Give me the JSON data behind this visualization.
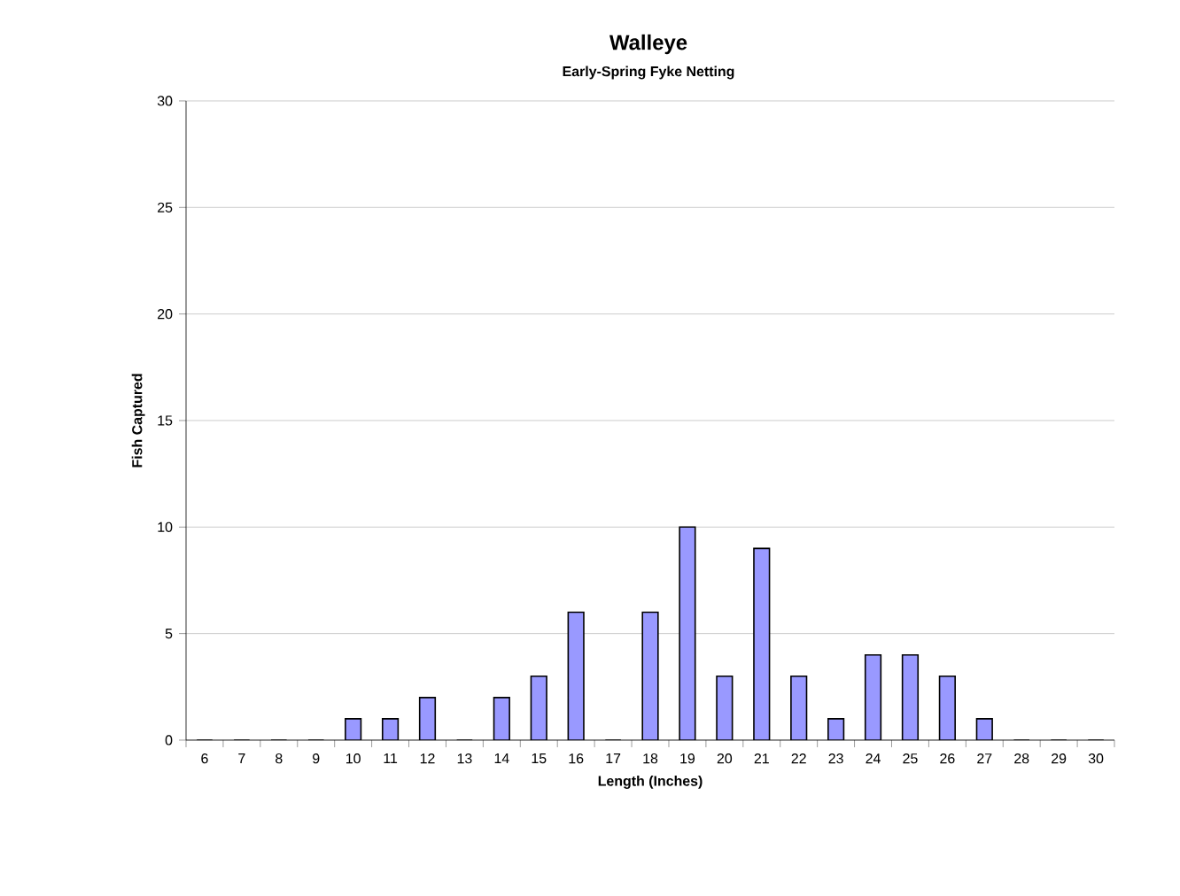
{
  "chart_data": {
    "type": "bar",
    "title": "Walleye",
    "subtitle": "Early-Spring Fyke Netting",
    "xlabel": "Length (Inches)",
    "ylabel": "Fish Captured",
    "categories": [
      "6",
      "7",
      "8",
      "9",
      "10",
      "11",
      "12",
      "13",
      "14",
      "15",
      "16",
      "17",
      "18",
      "19",
      "20",
      "21",
      "22",
      "23",
      "24",
      "25",
      "26",
      "27",
      "28",
      "29",
      "30"
    ],
    "values": [
      0,
      0,
      0,
      0,
      1,
      1,
      2,
      0,
      2,
      3,
      6,
      0,
      6,
      10,
      3,
      9,
      3,
      1,
      4,
      4,
      3,
      1,
      0,
      0,
      0
    ],
    "color": "#9999ff",
    "ylim": [
      0,
      30
    ],
    "yticks": [
      0,
      5,
      10,
      15,
      20,
      25,
      30
    ],
    "grid": "y"
  }
}
